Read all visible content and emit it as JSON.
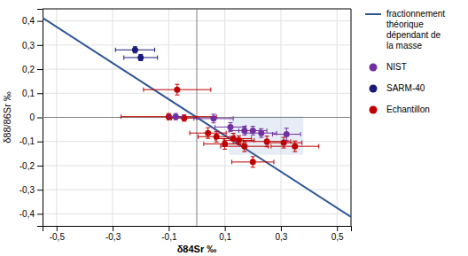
{
  "chart_data": {
    "type": "scatter",
    "xlabel": "δ84Sr ‰",
    "ylabel": "δ88/86Sr ‰",
    "xlim": [
      -0.55,
      0.55
    ],
    "ylim": [
      -0.45,
      0.45
    ],
    "xticks": [
      {
        "value": -0.5,
        "label": "-0,5"
      },
      {
        "value": -0.3,
        "label": "-0,3"
      },
      {
        "value": -0.1,
        "label": "-0,1"
      },
      {
        "value": 0.1,
        "label": "0,1"
      },
      {
        "value": 0.3,
        "label": "0,3"
      },
      {
        "value": 0.5,
        "label": "0,5"
      }
    ],
    "yticks": [
      {
        "value": -0.4,
        "label": "-0,4"
      },
      {
        "value": -0.3,
        "label": "-0,3"
      },
      {
        "value": -0.2,
        "label": "-0,2"
      },
      {
        "value": -0.1,
        "label": "-0,1"
      },
      0,
      {
        "value": 0.1,
        "label": "0,1"
      },
      {
        "value": 0.2,
        "label": "0,2"
      },
      {
        "value": 0.3,
        "label": "0,3"
      },
      {
        "value": 0.4,
        "label": "0,4"
      }
    ],
    "grid": true,
    "legend": "right",
    "hlines": [
      0
    ],
    "vlines": [
      0
    ],
    "shaded_region": {
      "x": 0.115,
      "y": -0.155,
      "width": 0.265,
      "height": 0.16,
      "color": "#b8cce4"
    },
    "series": [
      {
        "name": "fractionnement\nthéorique\ndépendant de\nla masse",
        "type": "line",
        "color": "#2f5597",
        "x": [
          -0.55,
          0.55
        ],
        "values": [
          0.413,
          -0.413
        ]
      },
      {
        "name": "NIST",
        "color": "#7030a0",
        "x": [
          -0.075,
          0.06,
          0.12,
          0.17,
          0.2,
          0.23,
          0.32
        ],
        "values": [
          0.003,
          -0.005,
          -0.04,
          -0.055,
          -0.055,
          -0.065,
          -0.07
        ],
        "xerr": [
          0.025,
          0.07,
          0.055,
          0.055,
          0.05,
          0.055,
          0.05
        ],
        "yerr": [
          0.013,
          0.018,
          0.018,
          0.018,
          0.018,
          0.018,
          0.025
        ]
      },
      {
        "name": "SARM-40",
        "color": "#1a1a7a",
        "x": [
          -0.22,
          -0.2
        ],
        "values": [
          0.28,
          0.248
        ],
        "xerr": [
          0.07,
          0.06
        ],
        "yerr": [
          0.013,
          0.013
        ]
      },
      {
        "name": "Echantillon",
        "color": "#c00000",
        "x": [
          -0.07,
          -0.1,
          -0.045,
          0.04,
          0.07,
          0.1,
          0.13,
          0.15,
          0.17,
          0.2,
          0.25,
          0.31,
          0.35
        ],
        "values": [
          0.115,
          0.003,
          -0.003,
          -0.065,
          -0.08,
          -0.11,
          -0.088,
          -0.095,
          -0.12,
          -0.185,
          -0.1,
          -0.105,
          -0.12
        ],
        "xerr": [
          0.12,
          0.17,
          0.045,
          0.065,
          0.065,
          0.075,
          0.065,
          0.055,
          0.085,
          0.075,
          0.085,
          0.065,
          0.085
        ],
        "yerr": [
          0.022,
          0.013,
          0.013,
          0.022,
          0.022,
          0.022,
          0.022,
          0.018,
          0.022,
          0.022,
          0.022,
          0.022,
          0.022
        ]
      }
    ]
  }
}
